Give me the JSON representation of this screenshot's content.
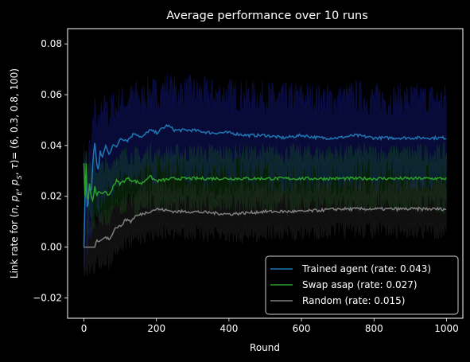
{
  "chart_data": {
    "type": "line",
    "title": "Average performance over 10 runs",
    "xlabel": "Round",
    "ylabel": "Link rate for (n, p_E, p_S, τ)= (6, 0.3, 0.8, 100)",
    "xlim": [
      -45,
      1045
    ],
    "ylim": [
      -0.028,
      0.086
    ],
    "xticks": [
      0,
      200,
      400,
      600,
      800,
      1000
    ],
    "yticks": [
      -0.02,
      0.0,
      0.02,
      0.04,
      0.06,
      0.08
    ],
    "legend_position": "lower-right",
    "grid": false,
    "background": "#000000",
    "series": [
      {
        "name": "Trained agent (rate: 0.043)",
        "color": "#1f77b4",
        "band_color": "#1e28c8",
        "x": [
          0,
          5,
          10,
          15,
          20,
          25,
          30,
          35,
          40,
          45,
          50,
          60,
          70,
          80,
          90,
          100,
          120,
          140,
          160,
          180,
          200,
          220,
          230,
          250,
          300,
          350,
          400,
          450,
          500,
          550,
          600,
          650,
          700,
          750,
          800,
          850,
          900,
          950,
          1000
        ],
        "values": [
          0.0,
          0.031,
          0.012,
          0.025,
          0.02,
          0.035,
          0.041,
          0.033,
          0.03,
          0.038,
          0.035,
          0.04,
          0.036,
          0.041,
          0.039,
          0.043,
          0.042,
          0.045,
          0.043,
          0.046,
          0.045,
          0.047,
          0.048,
          0.046,
          0.046,
          0.045,
          0.045,
          0.044,
          0.044,
          0.043,
          0.044,
          0.043,
          0.043,
          0.044,
          0.043,
          0.043,
          0.043,
          0.043,
          0.043
        ],
        "band_half_width": 0.022
      },
      {
        "name": "Swap asap (rate: 0.027)",
        "color": "#2ca02c",
        "band_color": "#1a6b1a",
        "x": [
          0,
          3,
          6,
          10,
          15,
          20,
          25,
          30,
          35,
          40,
          50,
          60,
          70,
          80,
          90,
          100,
          120,
          140,
          160,
          180,
          200,
          250,
          300,
          400,
          500,
          600,
          700,
          800,
          900,
          1000
        ],
        "values": [
          0.033,
          0.02,
          0.033,
          0.015,
          0.025,
          0.02,
          0.018,
          0.024,
          0.02,
          0.022,
          0.021,
          0.022,
          0.02,
          0.024,
          0.026,
          0.025,
          0.027,
          0.026,
          0.025,
          0.028,
          0.026,
          0.027,
          0.027,
          0.027,
          0.027,
          0.027,
          0.027,
          0.027,
          0.027,
          0.027
        ],
        "band_half_width": 0.014
      },
      {
        "name": "Random (rate: 0.015)",
        "color": "#7f7f7f",
        "band_color": "#3a3a3a",
        "x": [
          0,
          10,
          20,
          30,
          35,
          40,
          50,
          60,
          70,
          80,
          90,
          100,
          110,
          120,
          130,
          140,
          160,
          180,
          200,
          250,
          300,
          400,
          500,
          600,
          700,
          800,
          900,
          1000
        ],
        "values": [
          0.0,
          0.0,
          0.0,
          0.0,
          0.003,
          0.002,
          0.003,
          0.004,
          0.003,
          0.006,
          0.008,
          0.008,
          0.01,
          0.011,
          0.01,
          0.012,
          0.013,
          0.014,
          0.015,
          0.014,
          0.014,
          0.013,
          0.014,
          0.014,
          0.015,
          0.015,
          0.015,
          0.015
        ],
        "band_half_width": 0.012
      }
    ]
  }
}
